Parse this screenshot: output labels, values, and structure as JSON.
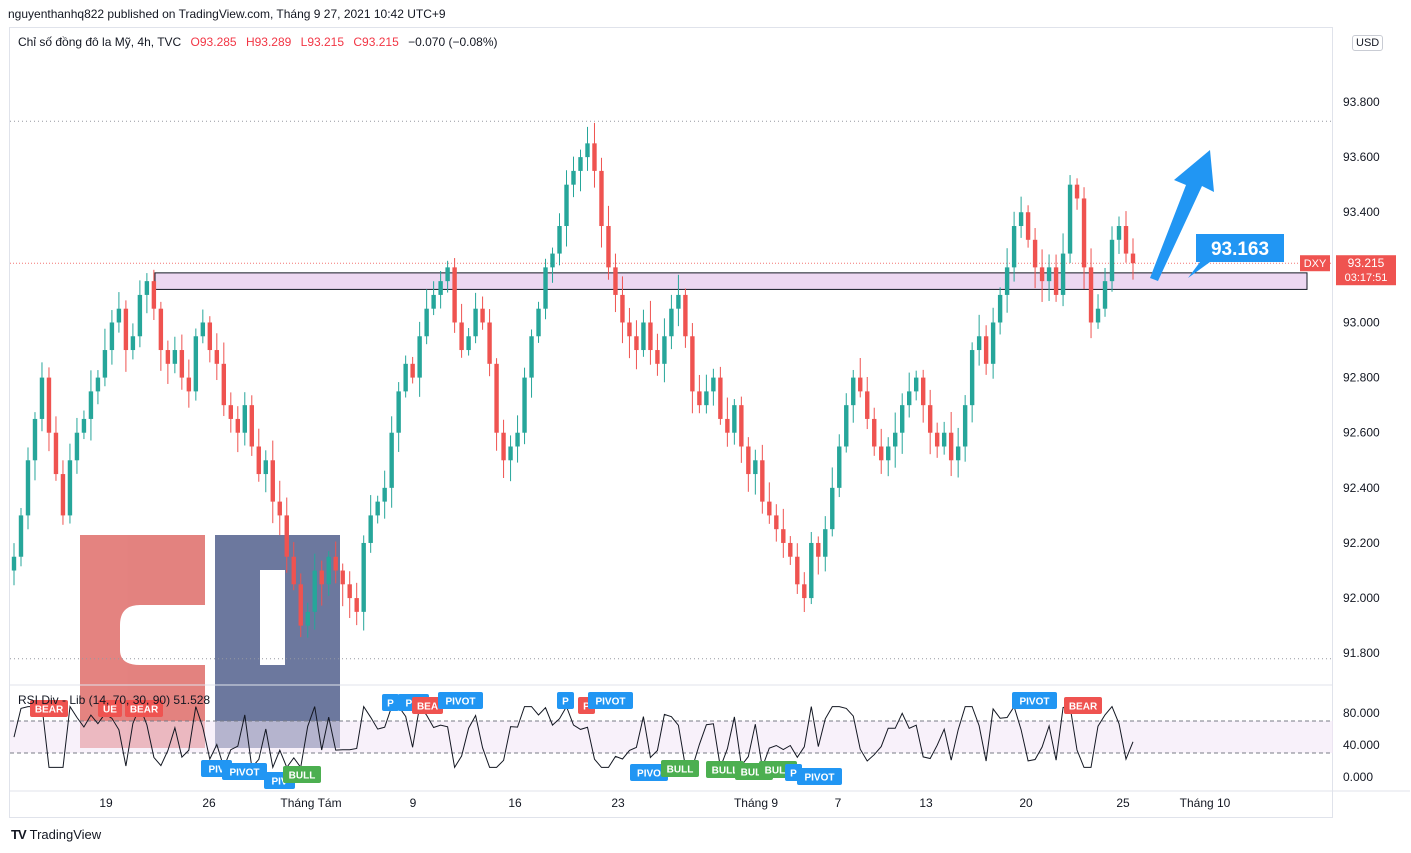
{
  "header": {
    "publish_line": "nguyenthanhq822 published on TradingView.com, Tháng 9 27, 2021 10:42 UTC+9"
  },
  "legend": {
    "symbol": "Chỉ số đồng đô la Mỹ, 4h, TVC",
    "open": "O93.285",
    "high": "H93.289",
    "low": "L93.215",
    "close": "C93.215",
    "change": "−0.070 (−0.08%)"
  },
  "currency_button": "USD",
  "rsi_legend": "RSI Div - Lib (14, 70, 30, 90)  51.528",
  "footer": {
    "brand": "TradingView"
  },
  "colors": {
    "up": "#26a69a",
    "down": "#ef5350",
    "zone": "#e1bee7",
    "arrow": "#2196f3",
    "bear_tag": "#ef5350",
    "bull_tag": "#4caf50",
    "pivot_tag": "#2196f3"
  },
  "chart_data": {
    "type": "candlestick",
    "price_axis": {
      "min": 91.7,
      "max": 94.0,
      "ticks": [
        "93.800",
        "93.600",
        "93.400",
        "93.200",
        "93.000",
        "92.800",
        "92.600",
        "92.400",
        "92.200",
        "92.000",
        "91.800"
      ]
    },
    "time_axis": {
      "ticks": [
        "19",
        "26",
        "Tháng Tám",
        "9",
        "16",
        "23",
        "Tháng 9",
        "7",
        "13",
        "20",
        "25",
        "Tháng 10"
      ]
    },
    "last_price": {
      "symbol": "DXY",
      "value": "93.215",
      "countdown": "03:17:51",
      "numeric": 93.215
    },
    "annotation": {
      "value": "93.163"
    },
    "zone": {
      "top": 93.18,
      "bottom": 93.12
    },
    "dotted_levels": [
      93.73,
      91.78
    ],
    "close_series": [
      92.15,
      92.3,
      92.5,
      92.65,
      92.8,
      92.6,
      92.45,
      92.3,
      92.5,
      92.6,
      92.65,
      92.75,
      92.8,
      92.9,
      93.0,
      93.05,
      92.9,
      92.95,
      93.1,
      93.15,
      93.05,
      92.9,
      92.85,
      92.9,
      92.8,
      92.75,
      92.95,
      93.0,
      92.9,
      92.85,
      92.7,
      92.65,
      92.6,
      92.7,
      92.55,
      92.45,
      92.5,
      92.35,
      92.3,
      92.15,
      92.05,
      91.9,
      91.95,
      92.1,
      92.05,
      92.15,
      92.1,
      92.05,
      92.0,
      91.95,
      92.2,
      92.3,
      92.35,
      92.4,
      92.6,
      92.75,
      92.85,
      92.8,
      92.95,
      93.05,
      93.1,
      93.15,
      93.2,
      93.0,
      92.9,
      92.95,
      93.05,
      93.0,
      92.85,
      92.6,
      92.5,
      92.55,
      92.6,
      92.8,
      92.95,
      93.05,
      93.2,
      93.25,
      93.35,
      93.5,
      93.55,
      93.6,
      93.65,
      93.55,
      93.35,
      93.2,
      93.1,
      93.0,
      92.95,
      92.9,
      93.0,
      92.9,
      92.85,
      92.95,
      93.05,
      93.1,
      92.95,
      92.75,
      92.7,
      92.75,
      92.8,
      92.65,
      92.6,
      92.7,
      92.55,
      92.45,
      92.5,
      92.35,
      92.3,
      92.25,
      92.2,
      92.15,
      92.05,
      92.0,
      92.2,
      92.15,
      92.25,
      92.4,
      92.55,
      92.7,
      92.8,
      92.75,
      92.65,
      92.55,
      92.5,
      92.55,
      92.6,
      92.7,
      92.75,
      92.8,
      92.7,
      92.6,
      92.55,
      92.6,
      92.5,
      92.55,
      92.7,
      92.9,
      92.95,
      92.85,
      93.0,
      93.1,
      93.2,
      93.35,
      93.4,
      93.3,
      93.2,
      93.15,
      93.2,
      93.1,
      93.25,
      93.5,
      93.45,
      93.2,
      93.0,
      93.05,
      93.15,
      93.3,
      93.35,
      93.25,
      93.215
    ],
    "rsi": {
      "levels": {
        "overbought": 70,
        "oversold": 30
      },
      "axis_ticks": [
        "80.000",
        "40.000",
        "0.000"
      ],
      "tags": [
        {
          "text": "BEAR",
          "kind": "bear",
          "side": "top"
        },
        {
          "text": "UE",
          "kind": "bear",
          "side": "top"
        },
        {
          "text": "BEAR",
          "kind": "bear",
          "side": "top"
        },
        {
          "text": "PIV",
          "kind": "pivot",
          "side": "bottom"
        },
        {
          "text": "PIVOT",
          "kind": "pivot",
          "side": "bottom"
        },
        {
          "text": "PIV",
          "kind": "pivot",
          "side": "bottom"
        },
        {
          "text": "BULL",
          "kind": "bull",
          "side": "bottom"
        },
        {
          "text": "P",
          "kind": "pivot",
          "side": "top"
        },
        {
          "text": "PIV",
          "kind": "pivot",
          "side": "top"
        },
        {
          "text": "BEA",
          "kind": "bear",
          "side": "top"
        },
        {
          "text": "PIVOT",
          "kind": "pivot",
          "side": "top"
        },
        {
          "text": "P",
          "kind": "pivot",
          "side": "top"
        },
        {
          "text": "P",
          "kind": "bear",
          "side": "top"
        },
        {
          "text": "PIVOT",
          "kind": "pivot",
          "side": "top"
        },
        {
          "text": "PIVO",
          "kind": "pivot",
          "side": "bottom"
        },
        {
          "text": "BULL",
          "kind": "bull",
          "side": "bottom"
        },
        {
          "text": "BULL",
          "kind": "bull",
          "side": "bottom"
        },
        {
          "text": "BULL",
          "kind": "bull",
          "side": "bottom"
        },
        {
          "text": "BULL",
          "kind": "bull",
          "side": "bottom"
        },
        {
          "text": "P",
          "kind": "pivot",
          "side": "bottom"
        },
        {
          "text": "PIVOT",
          "kind": "pivot",
          "side": "bottom"
        },
        {
          "text": "PIVOT",
          "kind": "pivot",
          "side": "top"
        },
        {
          "text": "BEAR",
          "kind": "bear",
          "side": "top"
        }
      ]
    }
  }
}
